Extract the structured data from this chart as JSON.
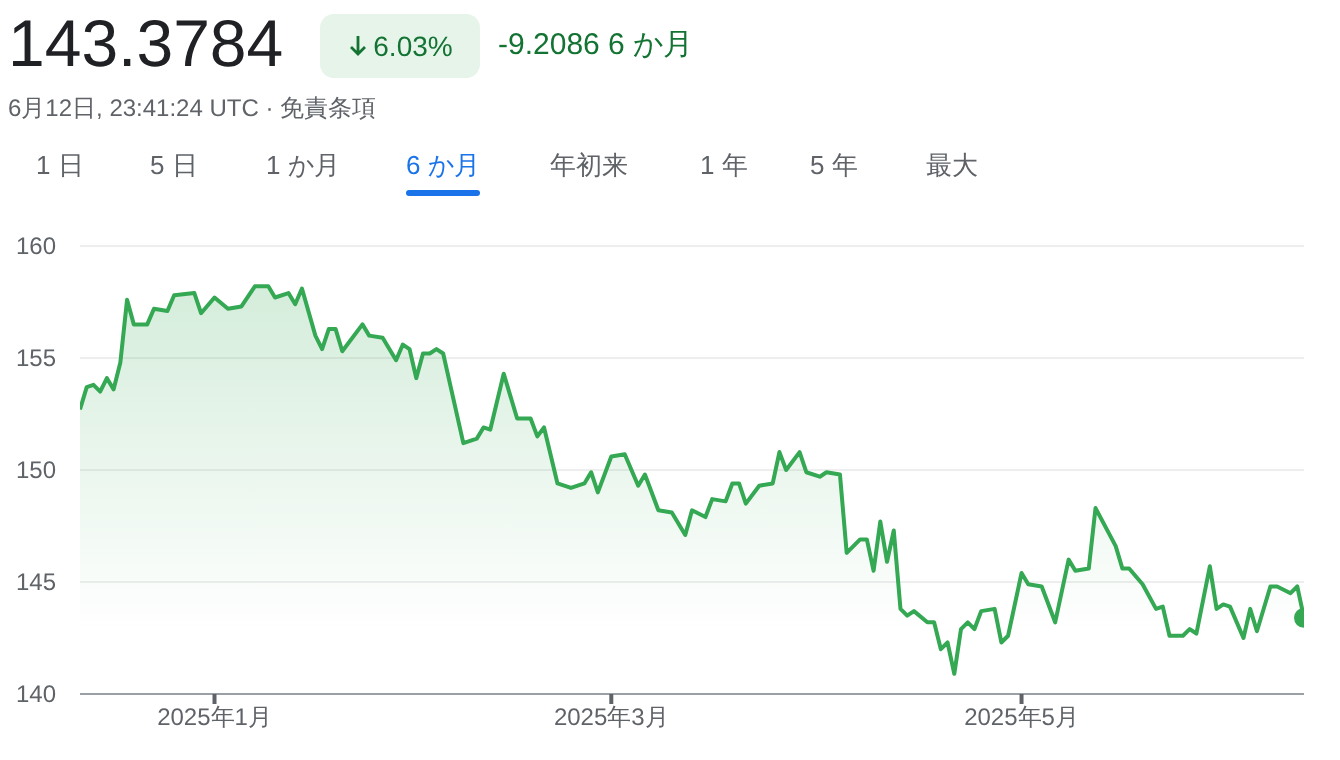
{
  "chart_data": {
    "type": "area",
    "title": "143.3784",
    "annotations": [
      "6.03%",
      "-9.2086 6 か月",
      "6月12日, 23:41:24 UTC · 免責条項",
      "1 日",
      "5 日",
      "1 か月",
      "6 か月",
      "年初来",
      "1 年",
      "5 年",
      "最大"
    ],
    "xlim": [
      "2024-12-12",
      "2025-06-12"
    ],
    "xticks": [
      {
        "value": "2025-01-01",
        "label": "2025年1月"
      },
      {
        "value": "2025-03-01",
        "label": "2025年3月"
      },
      {
        "value": "2025-05-01",
        "label": "2025年5月"
      }
    ],
    "ylim": [
      140,
      160
    ],
    "yticks": [
      140,
      145,
      150,
      155,
      160
    ],
    "grid": "y",
    "legend": false,
    "series": [
      {
        "color": "#34a853",
        "marker": "none",
        "x": [
          "2024-12-12",
          "2024-12-13",
          "2024-12-14",
          "2024-12-15",
          "2024-12-16",
          "2024-12-17",
          "2024-12-18",
          "2024-12-19",
          "2024-12-20",
          "2024-12-22",
          "2024-12-23",
          "2024-12-25",
          "2024-12-26",
          "2024-12-29",
          "2024-12-30",
          "2025-01-01",
          "2025-01-03",
          "2025-01-05",
          "2025-01-07",
          "2025-01-09",
          "2025-01-10",
          "2025-01-12",
          "2025-01-13",
          "2025-01-14",
          "2025-01-16",
          "2025-01-17",
          "2025-01-18",
          "2025-01-19",
          "2025-01-20",
          "2025-01-23",
          "2025-01-24",
          "2025-01-26",
          "2025-01-28",
          "2025-01-29",
          "2025-01-30",
          "2025-01-31",
          "2025-02-01",
          "2025-02-02",
          "2025-02-03",
          "2025-02-04",
          "2025-02-07",
          "2025-02-09",
          "2025-02-10",
          "2025-02-11",
          "2025-02-13",
          "2025-02-15",
          "2025-02-17",
          "2025-02-18",
          "2025-02-19",
          "2025-02-21",
          "2025-02-23",
          "2025-02-25",
          "2025-02-26",
          "2025-02-27",
          "2025-03-01",
          "2025-03-03",
          "2025-03-05",
          "2025-03-06",
          "2025-03-08",
          "2025-03-10",
          "2025-03-12",
          "2025-03-13",
          "2025-03-15",
          "2025-03-16",
          "2025-03-18",
          "2025-03-19",
          "2025-03-20",
          "2025-03-21",
          "2025-03-23",
          "2025-03-25",
          "2025-03-26",
          "2025-03-27",
          "2025-03-29",
          "2025-03-30",
          "2025-04-01",
          "2025-04-02",
          "2025-04-04",
          "2025-04-05",
          "2025-04-07",
          "2025-04-08",
          "2025-04-09",
          "2025-04-10",
          "2025-04-11",
          "2025-04-12",
          "2025-04-13",
          "2025-04-14",
          "2025-04-15",
          "2025-04-17",
          "2025-04-18",
          "2025-04-19",
          "2025-04-20",
          "2025-04-21",
          "2025-04-22",
          "2025-04-23",
          "2025-04-24",
          "2025-04-25",
          "2025-04-27",
          "2025-04-28",
          "2025-04-29",
          "2025-05-01",
          "2025-05-02",
          "2025-05-04",
          "2025-05-06",
          "2025-05-08",
          "2025-05-09",
          "2025-05-11",
          "2025-05-12",
          "2025-05-15",
          "2025-05-16",
          "2025-05-17",
          "2025-05-19",
          "2025-05-21",
          "2025-05-22",
          "2025-05-23",
          "2025-05-25",
          "2025-05-26",
          "2025-05-27",
          "2025-05-29",
          "2025-05-30",
          "2025-05-31",
          "2025-06-01",
          "2025-06-03",
          "2025-06-04",
          "2025-06-05",
          "2025-06-07",
          "2025-06-08",
          "2025-06-10",
          "2025-06-11",
          "2025-06-12"
        ],
        "values": [
          152.7,
          153.7,
          153.8,
          153.5,
          154.1,
          153.6,
          154.8,
          157.6,
          156.5,
          156.5,
          157.2,
          157.1,
          157.8,
          157.9,
          157.0,
          157.7,
          157.2,
          157.3,
          158.2,
          158.2,
          157.7,
          157.9,
          157.4,
          158.1,
          156.0,
          155.4,
          156.3,
          156.3,
          155.3,
          156.5,
          156.0,
          155.9,
          154.9,
          155.6,
          155.4,
          154.1,
          155.2,
          155.2,
          155.4,
          155.2,
          151.2,
          151.4,
          151.9,
          151.8,
          154.3,
          152.3,
          152.3,
          151.5,
          151.9,
          149.4,
          149.2,
          149.4,
          149.9,
          149.0,
          150.6,
          150.7,
          149.3,
          149.8,
          148.2,
          148.1,
          147.1,
          148.2,
          147.9,
          148.7,
          148.6,
          149.4,
          149.4,
          148.5,
          149.3,
          149.4,
          150.8,
          150.0,
          150.8,
          149.9,
          149.7,
          149.9,
          149.8,
          146.3,
          146.9,
          146.9,
          145.5,
          147.7,
          145.9,
          147.3,
          143.8,
          143.5,
          143.7,
          143.2,
          143.2,
          142.0,
          142.3,
          140.9,
          142.9,
          143.2,
          142.9,
          143.7,
          143.8,
          142.3,
          142.6,
          145.4,
          144.9,
          144.8,
          143.2,
          146.0,
          145.5,
          145.6,
          148.3,
          146.6,
          145.6,
          145.6,
          144.9,
          143.8,
          143.9,
          142.6,
          142.6,
          142.9,
          142.7,
          145.7,
          143.8,
          144.0,
          143.9,
          142.5,
          143.8,
          142.8,
          144.8,
          144.8,
          144.5,
          144.8,
          143.4
        ]
      },
      {
        "type": "scatter",
        "color": "#34a853",
        "marker": "circle",
        "x": [
          "2025-06-12"
        ],
        "values": [
          143.4
        ]
      }
    ]
  }
}
